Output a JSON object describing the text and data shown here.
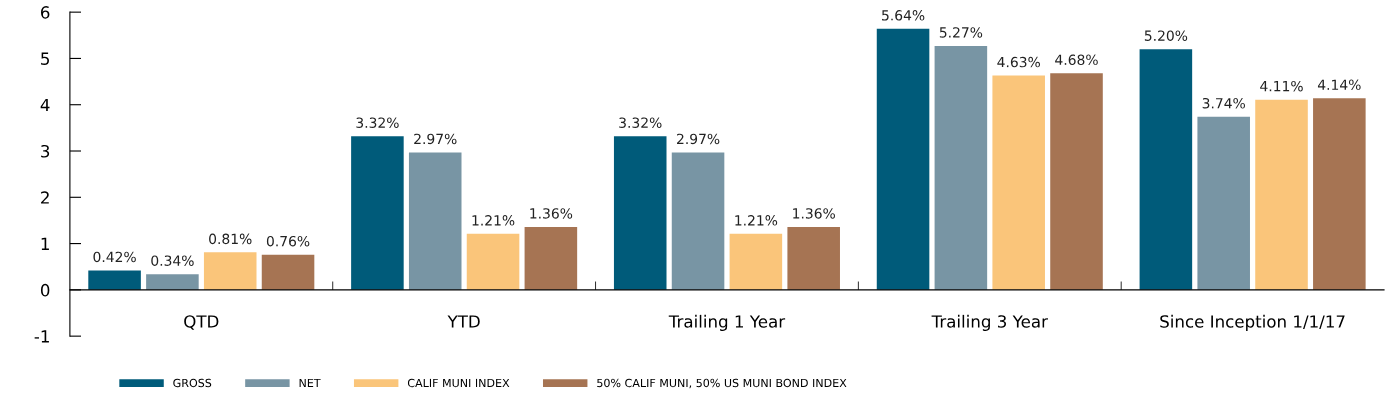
{
  "chart_data": {
    "type": "bar",
    "categories": [
      "QTD",
      "YTD",
      "Trailing 1 Year",
      "Trailing 3 Year",
      "Since Inception 1/1/17"
    ],
    "series": [
      {
        "name": "GROSS",
        "color": "#005b7a",
        "values": [
          0.42,
          3.32,
          3.32,
          5.64,
          5.2
        ],
        "value_labels": [
          "0.42%",
          "3.32%",
          "3.32%",
          "5.64%",
          "5.20%"
        ]
      },
      {
        "name": "NET",
        "color": "#7895a4",
        "values": [
          0.34,
          2.97,
          2.97,
          5.27,
          3.74
        ],
        "value_labels": [
          "0.34%",
          "2.97%",
          "2.97%",
          "5.27%",
          "3.74%"
        ]
      },
      {
        "name": "CALIF MUNI INDEX",
        "color": "#fac57a",
        "values": [
          0.81,
          1.21,
          1.21,
          4.63,
          4.11
        ],
        "value_labels": [
          "0.81%",
          "1.21%",
          "1.21%",
          "4.63%",
          "4.11%"
        ]
      },
      {
        "name": "50% CALIF MUNI, 50% US MUNI BOND INDEX",
        "color": "#a67453",
        "values": [
          0.76,
          1.36,
          1.36,
          4.68,
          4.14
        ],
        "value_labels": [
          "0.76%",
          "1.36%",
          "1.36%",
          "4.68%",
          "4.14%"
        ]
      }
    ],
    "ylim": [
      -1,
      6
    ],
    "yticks": [
      -1,
      0,
      1,
      2,
      3,
      4,
      5,
      6
    ],
    "grid": false,
    "legend": "bottom"
  }
}
